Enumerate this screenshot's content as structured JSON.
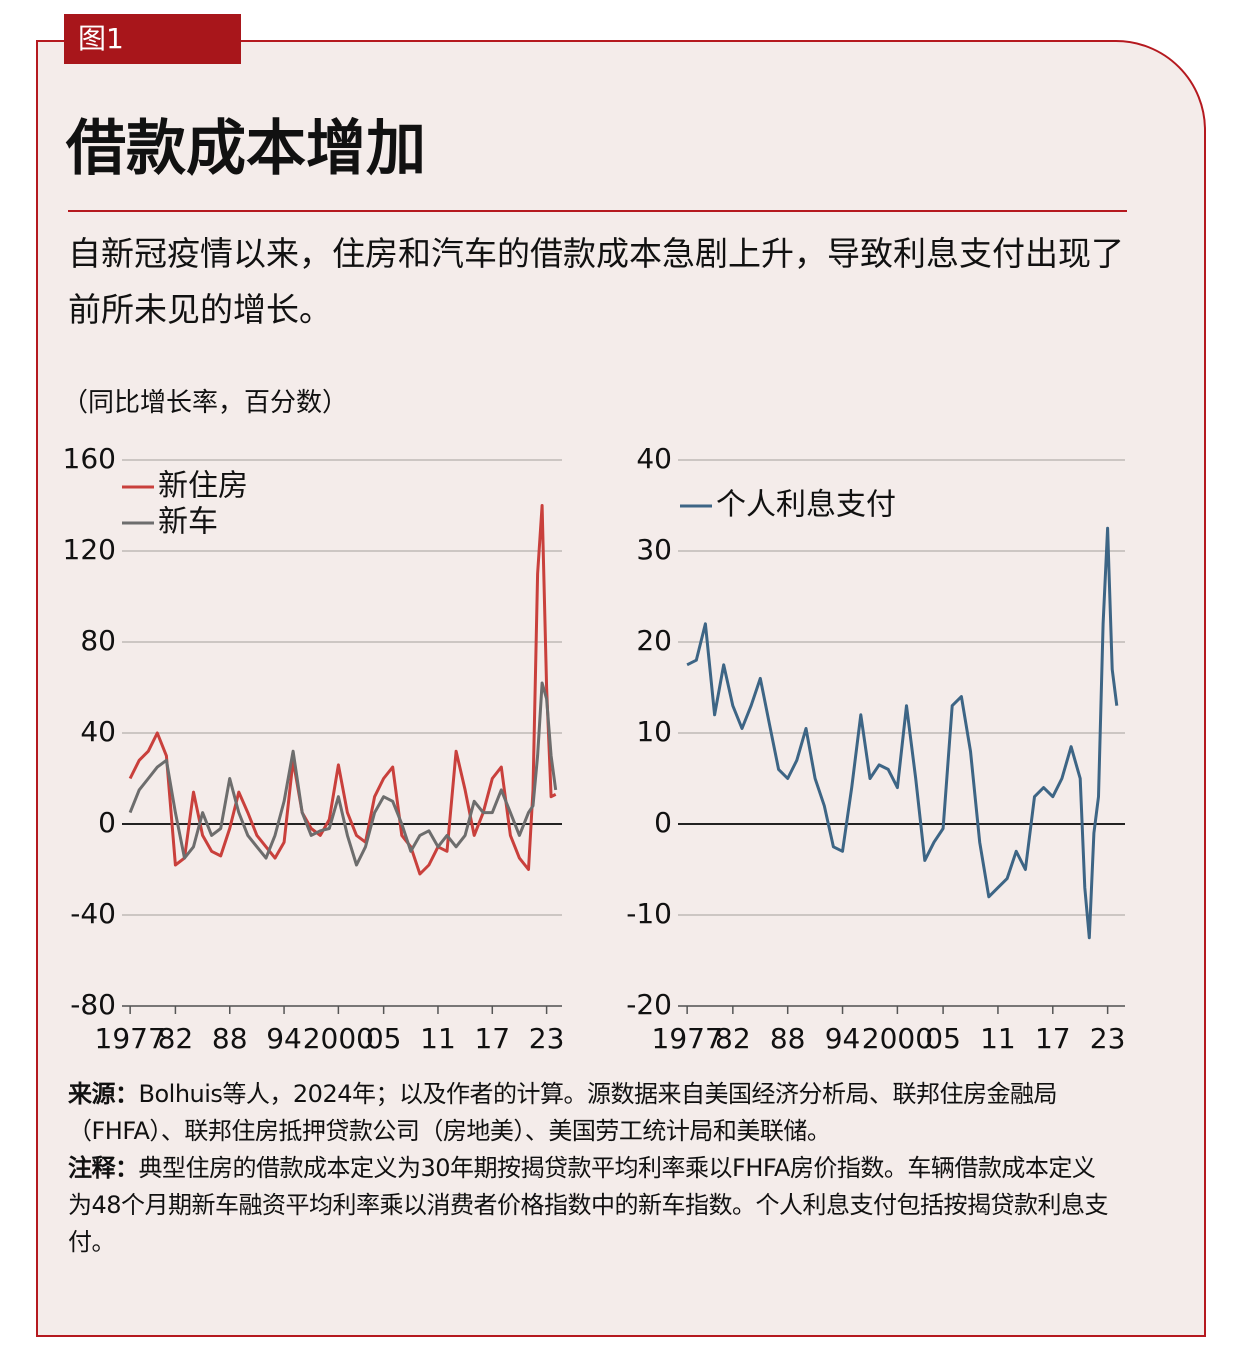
{
  "header": {
    "figure_label": "图1",
    "title": "借款成本增加",
    "subtitle": "自新冠疫情以来，住房和汽车的借款成本急剧上升，导致利息支付出现了前所未见的增长。",
    "unit_label": "（同比增长率，百分数）"
  },
  "chart_data": [
    {
      "type": "line",
      "legend": "upper left",
      "grid": true,
      "x": [
        1977,
        1978,
        1979,
        1980,
        1981,
        1982,
        1983,
        1984,
        1985,
        1986,
        1987,
        1988,
        1989,
        1990,
        1991,
        1992,
        1993,
        1994,
        1995,
        1996,
        1997,
        1998,
        1999,
        2000,
        2001,
        2002,
        2003,
        2004,
        2005,
        2006,
        2007,
        2008,
        2009,
        2010,
        2011,
        2012,
        2013,
        2014,
        2015,
        2016,
        2017,
        2018,
        2019,
        2020,
        2021,
        2021.5,
        2022,
        2022.5,
        2023,
        2023.5,
        2024
      ],
      "xlim": [
        1976.1,
        2024.7
      ],
      "xticks": [
        1977,
        {
          "value": 1982,
          "label": "82"
        },
        {
          "value": 1988,
          "label": "88"
        },
        {
          "value": 1994,
          "label": "94"
        },
        2000,
        {
          "value": 2005,
          "label": "05"
        },
        {
          "value": 2011,
          "label": "11"
        },
        {
          "value": 2017,
          "label": "17"
        },
        {
          "value": 2023,
          "label": "23"
        }
      ],
      "ylim": [
        -80,
        160
      ],
      "yticks": [
        -80,
        -40,
        0,
        40,
        80,
        120,
        160
      ],
      "series": [
        {
          "name": "新住房",
          "color": "#c9403c",
          "values": [
            20,
            28,
            32,
            40,
            30,
            -18,
            -15,
            14,
            -5,
            -12,
            -14,
            -2,
            14,
            5,
            -5,
            -10,
            -15,
            -8,
            28,
            5,
            -2,
            -5,
            2,
            26,
            5,
            -5,
            -8,
            12,
            20,
            25,
            -5,
            -10,
            -22,
            -18,
            -10,
            -12,
            32,
            15,
            -5,
            5,
            20,
            25,
            -5,
            -15,
            -20,
            15,
            110,
            140,
            60,
            12,
            13
          ]
        },
        {
          "name": "新车",
          "color": "#6d6d6d",
          "values": [
            5,
            15,
            20,
            25,
            28,
            5,
            -15,
            -10,
            5,
            -5,
            -2,
            20,
            5,
            -5,
            -10,
            -15,
            -5,
            10,
            32,
            5,
            -5,
            -3,
            -2,
            12,
            -5,
            -18,
            -10,
            5,
            12,
            10,
            0,
            -12,
            -5,
            -3,
            -10,
            -5,
            -10,
            -5,
            10,
            5,
            5,
            15,
            5,
            -5,
            5,
            8,
            30,
            62,
            55,
            30,
            15
          ]
        }
      ]
    },
    {
      "type": "line",
      "legend": "upper left",
      "grid": true,
      "x": [
        1977,
        1978,
        1979,
        1980,
        1981,
        1982,
        1983,
        1984,
        1985,
        1986,
        1987,
        1988,
        1989,
        1990,
        1991,
        1992,
        1993,
        1994,
        1995,
        1996,
        1997,
        1998,
        1999,
        2000,
        2001,
        2002,
        2003,
        2004,
        2005,
        2006,
        2007,
        2008,
        2009,
        2010,
        2011,
        2012,
        2013,
        2014,
        2015,
        2016,
        2017,
        2018,
        2019,
        2020,
        2020.5,
        2021,
        2021.5,
        2022,
        2022.5,
        2023,
        2023.5,
        2024
      ],
      "xlim": [
        1976.0,
        2024.9
      ],
      "xticks": [
        1977,
        {
          "value": 1982,
          "label": "82"
        },
        {
          "value": 1988,
          "label": "88"
        },
        {
          "value": 1994,
          "label": "94"
        },
        2000,
        {
          "value": 2005,
          "label": "05"
        },
        {
          "value": 2011,
          "label": "11"
        },
        {
          "value": 2017,
          "label": "17"
        },
        {
          "value": 2023,
          "label": "23"
        }
      ],
      "ylim": [
        -20,
        40
      ],
      "yticks": [
        -20,
        -10,
        0,
        10,
        20,
        30,
        40
      ],
      "series": [
        {
          "name": "个人利息支付",
          "color": "#3d6585",
          "values": [
            17.5,
            18,
            22,
            12,
            17.5,
            13,
            10.5,
            13,
            16,
            11,
            6,
            5,
            7,
            10.5,
            5,
            2,
            -2.5,
            -3,
            4,
            12,
            5,
            6.5,
            6,
            4,
            13,
            5,
            -4,
            -2,
            -0.5,
            13,
            14,
            8,
            -2,
            -8,
            -7,
            -6,
            -3,
            -5,
            3,
            4,
            3,
            5,
            8.5,
            5,
            -7,
            -12.5,
            -1,
            3,
            22,
            32.5,
            17,
            13
          ]
        }
      ]
    }
  ],
  "notes": {
    "source_label": "来源：",
    "source": "Bolhuis等人，2024年；以及作者的计算。源数据来自美国经济分析局、联邦住房金融局（FHFA）、联邦住房抵押贷款公司（房地美）、美国劳工统计局和美联储。",
    "note_label": "注释：",
    "note": "典型住房的借款成本定义为30年期按揭贷款平均利率乘以FHFA房价指数。车辆借款成本定义为48个月期新车融资平均利率乘以消费者价格指数中的新车指数。个人利息支付包括按揭贷款利息支付。"
  }
}
